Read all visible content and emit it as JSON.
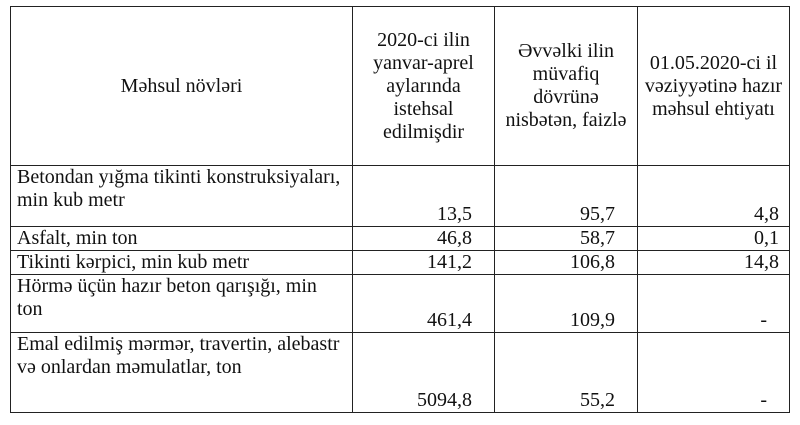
{
  "headers": [
    "Məhsul növləri",
    "2020-ci ilin yanvar-aprel aylarında istehsal edilmişdir",
    "Əvvəlki ilin müvafiq dövrünə nisbətən, faizlə",
    "01.05.2020-ci il vəziyyətinə hazır məhsul ehtiyatı"
  ],
  "rows": [
    {
      "name": "Betondan yığma tikinti konstruksiyaları, min kub metr",
      "produced": "13,5",
      "percent": "95,7",
      "stock": "4,8"
    },
    {
      "name": "Asfalt, min ton",
      "produced": "46,8",
      "percent": "58,7",
      "stock": "0,1"
    },
    {
      "name": "Tikinti kərpici, min kub metr",
      "produced": "141,2",
      "percent": "106,8",
      "stock": "14,8"
    },
    {
      "name": "Hörmə üçün hazır beton qarışığı, min ton",
      "produced": "461,4",
      "percent": "109,9",
      "stock": "-"
    },
    {
      "name": "Emal edilmiş mərmər, travertin, alebastr və onlardan məmulatlar, ton",
      "produced": "5094,8",
      "percent": "55,2",
      "stock": "-"
    }
  ]
}
